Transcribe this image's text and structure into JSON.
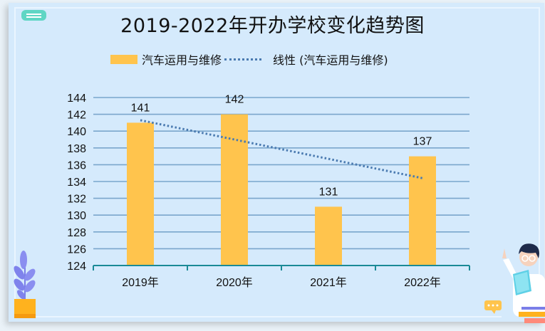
{
  "title": "2019-2022年开办学校变化趋势图",
  "legend": {
    "series_label": "汽车运用与维修",
    "trend_label": "线性 (汽车运用与维修)"
  },
  "colors": {
    "bar": "#ffc44d",
    "trend": "#4a7ab0",
    "grid": "#7aa6cc",
    "axis": "#1a8a96",
    "background": "#d5eafc",
    "menu_pill": "#5fd6c4"
  },
  "chart_data": {
    "type": "bar",
    "title": "2019-2022年开办学校变化趋势图",
    "categories": [
      "2019年",
      "2020年",
      "2021年",
      "2022年"
    ],
    "series": [
      {
        "name": "汽车运用与维修",
        "values": [
          141,
          142,
          131,
          137
        ]
      }
    ],
    "trendline": {
      "name": "线性 (汽车运用与维修)",
      "type": "linear",
      "start": 141.3,
      "end": 134.4
    },
    "data_labels": [
      "141",
      "142",
      "131",
      "137"
    ],
    "xlabel": "",
    "ylabel": "",
    "ylim": [
      124,
      144
    ],
    "yticks": [
      "124",
      "126",
      "128",
      "130",
      "132",
      "134",
      "136",
      "138",
      "140",
      "142",
      "144"
    ],
    "grid": true,
    "legend_position": "top"
  },
  "decorations": {
    "menu_icon": "menu-pill-icon",
    "plant": "potted-plant-illustration",
    "teacher": "teacher-with-book-illustration"
  }
}
